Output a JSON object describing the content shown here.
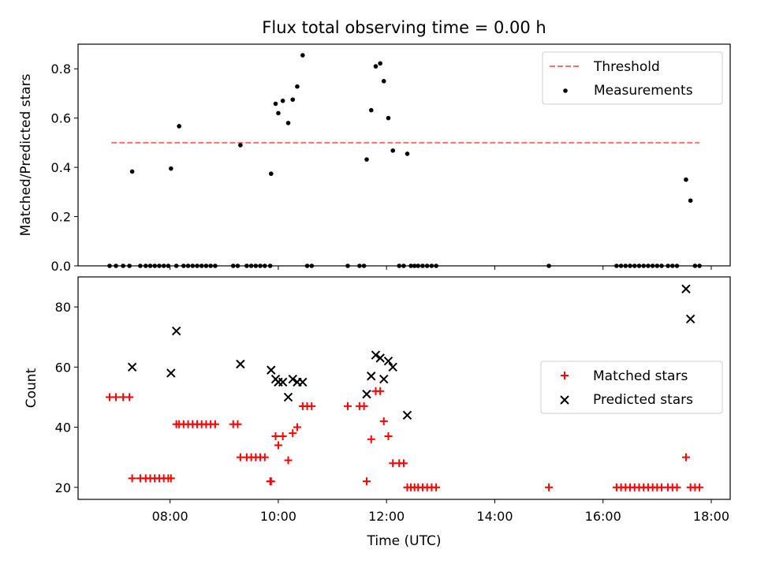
{
  "chart_data": [
    {
      "type": "scatter",
      "title": "Flux total observing time = 0.00 h",
      "xlabel": "",
      "ylabel": "Matched/Predicted stars",
      "xlim_hours": [
        6.3,
        18.35
      ],
      "ylim": [
        0,
        0.9
      ],
      "yticks": [
        0.0,
        0.2,
        0.4,
        0.6,
        0.8
      ],
      "ytick_labels": [
        "0.0",
        "0.2",
        "0.4",
        "0.6",
        "0.8"
      ],
      "legend_position": "top-right",
      "threshold": {
        "name": "Threshold",
        "value": 0.5,
        "x_range": [
          "06:55",
          "17:47"
        ],
        "color": "#ff7070",
        "style": "dashed"
      },
      "series": [
        {
          "name": "Measurements",
          "color": "#000000",
          "marker": "dot",
          "points": [
            [
              "06:53",
              0
            ],
            [
              "07:00",
              0
            ],
            [
              "07:08",
              0
            ],
            [
              "07:15",
              0
            ],
            [
              "07:18",
              0.383
            ],
            [
              "07:27",
              0
            ],
            [
              "07:33",
              0
            ],
            [
              "07:38",
              0
            ],
            [
              "07:43",
              0
            ],
            [
              "07:48",
              0
            ],
            [
              "07:53",
              0
            ],
            [
              "07:58",
              0
            ],
            [
              "08:01",
              0.395
            ],
            [
              "08:07",
              0
            ],
            [
              "08:10",
              0.567
            ],
            [
              "08:15",
              0
            ],
            [
              "08:20",
              0
            ],
            [
              "08:25",
              0
            ],
            [
              "08:30",
              0
            ],
            [
              "08:35",
              0
            ],
            [
              "08:40",
              0
            ],
            [
              "08:45",
              0
            ],
            [
              "08:50",
              0
            ],
            [
              "09:10",
              0
            ],
            [
              "09:15",
              0
            ],
            [
              "09:18",
              0.49
            ],
            [
              "09:25",
              0
            ],
            [
              "09:30",
              0
            ],
            [
              "09:35",
              0
            ],
            [
              "09:40",
              0
            ],
            [
              "09:45",
              0
            ],
            [
              "09:51",
              0
            ],
            [
              "09:52",
              0.374
            ],
            [
              "09:57",
              0.658
            ],
            [
              "10:00",
              0.62
            ],
            [
              "10:05",
              0.67
            ],
            [
              "10:11",
              0.58
            ],
            [
              "10:16",
              0.675
            ],
            [
              "10:21",
              0.728
            ],
            [
              "10:27",
              0.855
            ],
            [
              "10:32",
              0
            ],
            [
              "10:37",
              0
            ],
            [
              "11:17",
              0
            ],
            [
              "11:30",
              0
            ],
            [
              "11:35",
              0
            ],
            [
              "11:38",
              0.432
            ],
            [
              "11:43",
              0.632
            ],
            [
              "11:48",
              0.81
            ],
            [
              "11:53",
              0.822
            ],
            [
              "11:57",
              0.75
            ],
            [
              "12:02",
              0.6
            ],
            [
              "12:07",
              0.468
            ],
            [
              "12:14",
              0
            ],
            [
              "12:19",
              0
            ],
            [
              "12:23",
              0.455
            ],
            [
              "12:27",
              0
            ],
            [
              "12:31",
              0
            ],
            [
              "12:35",
              0
            ],
            [
              "12:40",
              0
            ],
            [
              "12:45",
              0
            ],
            [
              "12:50",
              0
            ],
            [
              "12:55",
              0
            ],
            [
              "15:00",
              0
            ],
            [
              "16:15",
              0
            ],
            [
              "16:20",
              0
            ],
            [
              "16:25",
              0
            ],
            [
              "16:30",
              0
            ],
            [
              "16:35",
              0
            ],
            [
              "16:40",
              0
            ],
            [
              "16:45",
              0
            ],
            [
              "16:50",
              0
            ],
            [
              "16:55",
              0
            ],
            [
              "17:00",
              0
            ],
            [
              "17:05",
              0
            ],
            [
              "17:12",
              0
            ],
            [
              "17:17",
              0
            ],
            [
              "17:22",
              0
            ],
            [
              "17:32",
              0.35
            ],
            [
              "17:37",
              0.265
            ],
            [
              "17:42",
              0
            ],
            [
              "17:47",
              0
            ]
          ]
        }
      ]
    },
    {
      "type": "scatter",
      "title": "",
      "xlabel": "Time (UTC)",
      "ylabel": "Count",
      "xlim_hours": [
        6.3,
        18.35
      ],
      "ylim": [
        16,
        90
      ],
      "yticks": [
        20,
        40,
        60,
        80
      ],
      "ytick_labels": [
        "20",
        "40",
        "60",
        "80"
      ],
      "xticks": [
        "08:00",
        "10:00",
        "12:00",
        "14:00",
        "16:00",
        "18:00"
      ],
      "legend_position": "center-right",
      "series": [
        {
          "name": "Matched stars",
          "color": "#ff0000",
          "marker": "plus",
          "points": [
            [
              "06:53",
              50
            ],
            [
              "07:00",
              50
            ],
            [
              "07:08",
              50
            ],
            [
              "07:15",
              50
            ],
            [
              "07:18",
              23
            ],
            [
              "07:27",
              23
            ],
            [
              "07:33",
              23
            ],
            [
              "07:38",
              23
            ],
            [
              "07:43",
              23
            ],
            [
              "07:48",
              23
            ],
            [
              "07:53",
              23
            ],
            [
              "07:58",
              23
            ],
            [
              "08:01",
              23
            ],
            [
              "08:07",
              41
            ],
            [
              "08:10",
              41
            ],
            [
              "08:15",
              41
            ],
            [
              "08:20",
              41
            ],
            [
              "08:25",
              41
            ],
            [
              "08:30",
              41
            ],
            [
              "08:35",
              41
            ],
            [
              "08:40",
              41
            ],
            [
              "08:45",
              41
            ],
            [
              "08:50",
              41
            ],
            [
              "09:10",
              41
            ],
            [
              "09:15",
              41
            ],
            [
              "09:18",
              30
            ],
            [
              "09:25",
              30
            ],
            [
              "09:30",
              30
            ],
            [
              "09:35",
              30
            ],
            [
              "09:40",
              30
            ],
            [
              "09:45",
              30
            ],
            [
              "09:51",
              22
            ],
            [
              "09:52",
              22
            ],
            [
              "09:57",
              37
            ],
            [
              "10:00",
              34
            ],
            [
              "10:05",
              37
            ],
            [
              "10:11",
              29
            ],
            [
              "10:16",
              38
            ],
            [
              "10:21",
              40
            ],
            [
              "10:27",
              47
            ],
            [
              "10:32",
              47
            ],
            [
              "10:37",
              47
            ],
            [
              "11:17",
              47
            ],
            [
              "11:30",
              47
            ],
            [
              "11:35",
              47
            ],
            [
              "11:38",
              22
            ],
            [
              "11:43",
              36
            ],
            [
              "11:48",
              52
            ],
            [
              "11:53",
              52
            ],
            [
              "11:57",
              42
            ],
            [
              "12:02",
              37
            ],
            [
              "12:07",
              28
            ],
            [
              "12:14",
              28
            ],
            [
              "12:19",
              28
            ],
            [
              "12:23",
              20
            ],
            [
              "12:27",
              20
            ],
            [
              "12:31",
              20
            ],
            [
              "12:35",
              20
            ],
            [
              "12:40",
              20
            ],
            [
              "12:45",
              20
            ],
            [
              "12:50",
              20
            ],
            [
              "12:55",
              20
            ],
            [
              "15:00",
              20
            ],
            [
              "16:15",
              20
            ],
            [
              "16:20",
              20
            ],
            [
              "16:25",
              20
            ],
            [
              "16:30",
              20
            ],
            [
              "16:35",
              20
            ],
            [
              "16:40",
              20
            ],
            [
              "16:45",
              20
            ],
            [
              "16:50",
              20
            ],
            [
              "16:55",
              20
            ],
            [
              "17:00",
              20
            ],
            [
              "17:05",
              20
            ],
            [
              "17:12",
              20
            ],
            [
              "17:17",
              20
            ],
            [
              "17:22",
              20
            ],
            [
              "17:32",
              30
            ],
            [
              "17:37",
              20
            ],
            [
              "17:42",
              20
            ],
            [
              "17:47",
              20
            ]
          ]
        },
        {
          "name": "Predicted stars",
          "color": "#000000",
          "marker": "x",
          "points": [
            [
              "07:18",
              60
            ],
            [
              "08:01",
              58
            ],
            [
              "08:07",
              72
            ],
            [
              "09:18",
              61
            ],
            [
              "09:52",
              59
            ],
            [
              "09:57",
              56
            ],
            [
              "10:00",
              55
            ],
            [
              "10:05",
              55
            ],
            [
              "10:11",
              50
            ],
            [
              "10:16",
              56
            ],
            [
              "10:21",
              55
            ],
            [
              "10:27",
              55
            ],
            [
              "11:38",
              51
            ],
            [
              "11:43",
              57
            ],
            [
              "11:48",
              64
            ],
            [
              "11:53",
              63
            ],
            [
              "11:57",
              56
            ],
            [
              "12:02",
              62
            ],
            [
              "12:07",
              60
            ],
            [
              "12:23",
              44
            ],
            [
              "17:32",
              86
            ],
            [
              "17:37",
              76
            ]
          ]
        }
      ]
    }
  ]
}
